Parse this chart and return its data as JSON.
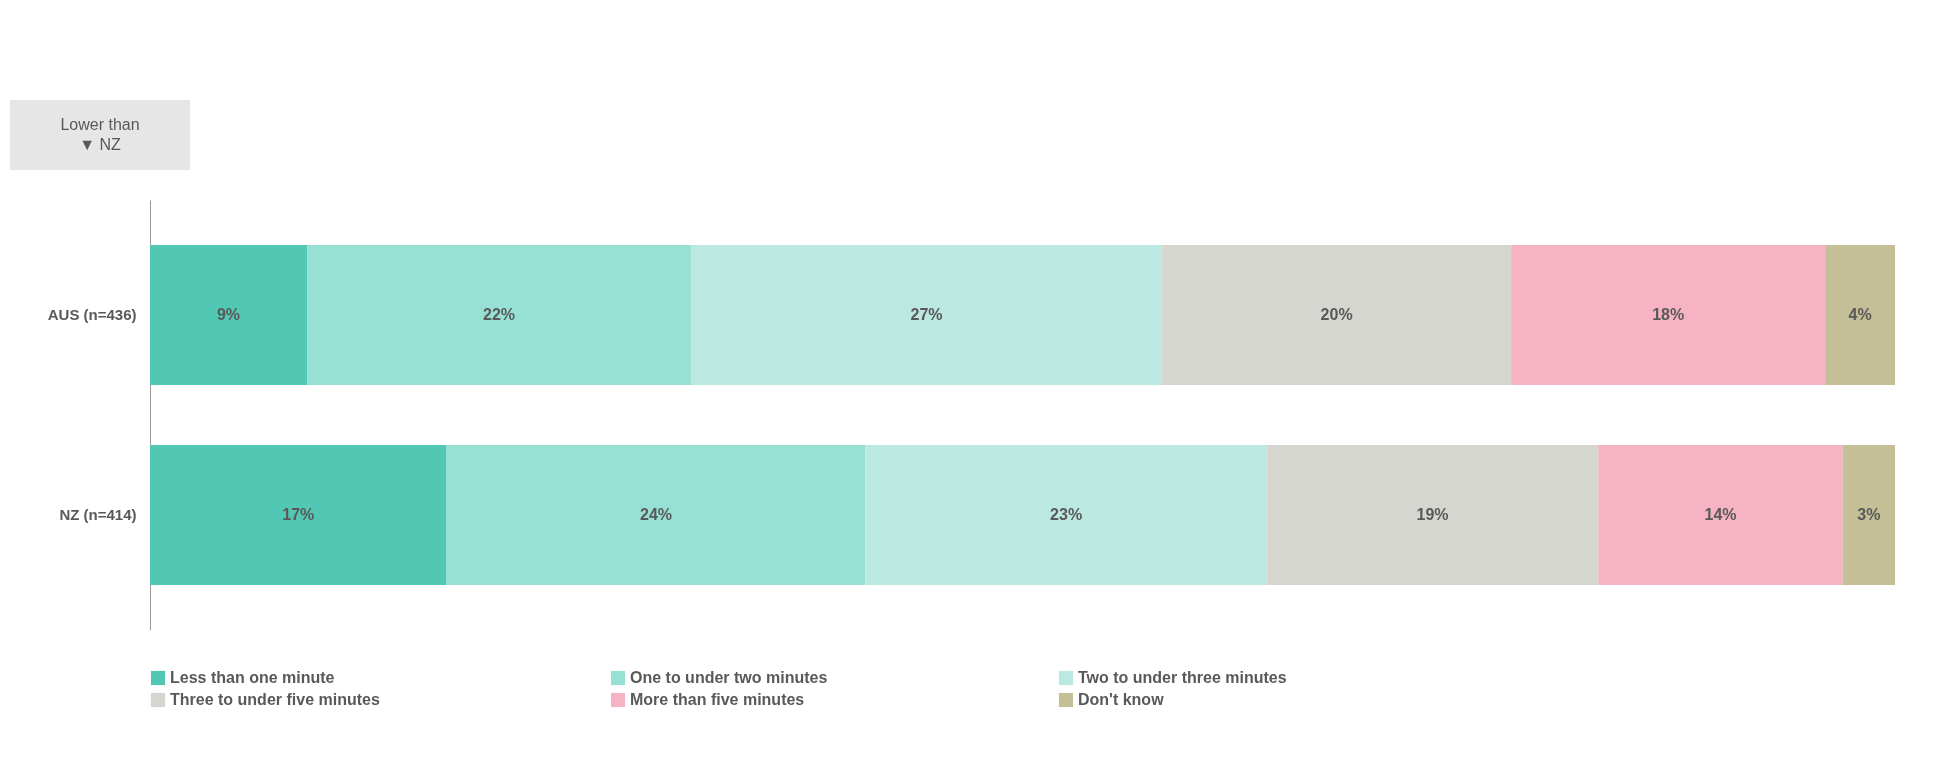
{
  "chart_data": {
    "type": "bar",
    "orientation": "horizontal",
    "stacked": true,
    "tick_labels": "y",
    "grid": false,
    "legend": "bottom",
    "categories": [
      "AUS (n=436)",
      "NZ (n=414)"
    ],
    "series": [
      {
        "name": "Less than one minute",
        "color": "#52c8b4",
        "values": [
          9,
          17
        ],
        "value_labels": [
          "9%",
          "17%"
        ]
      },
      {
        "name": "One to under two minutes",
        "color": "#97e0d4",
        "values": [
          22,
          24
        ],
        "value_labels": [
          "22%",
          "24%"
        ]
      },
      {
        "name": "Two to under three minutes",
        "color": "#bce8e2",
        "values": [
          27,
          23
        ],
        "value_labels": [
          "27%",
          "23%"
        ]
      },
      {
        "name": "Three to under five minutes",
        "color": "#d6d6d0",
        "values": [
          20,
          19
        ],
        "value_labels": [
          "20%",
          "19%"
        ]
      },
      {
        "name": "More than five minutes",
        "color": "#f5b3c4",
        "values": [
          18,
          14
        ],
        "value_labels": [
          "18%",
          "14%"
        ]
      },
      {
        "name": "Don't know",
        "color": "#c4bf96",
        "values": [
          4,
          3
        ],
        "value_labels": [
          "4%",
          "3%"
        ]
      }
    ],
    "annotations": [
      "Lower than ▼ NZ"
    ]
  }
}
